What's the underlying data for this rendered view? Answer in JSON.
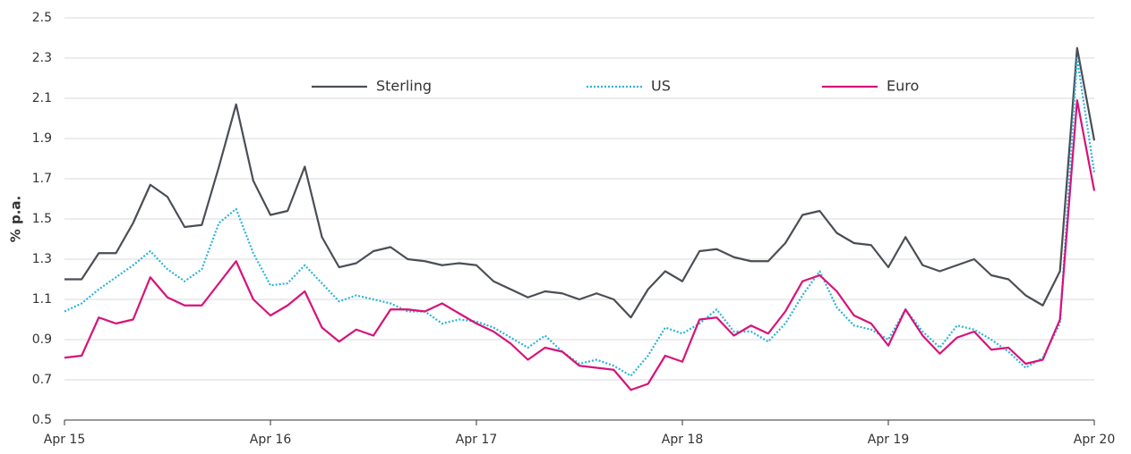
{
  "chart_data": {
    "type": "line",
    "y_label": "% p.a.",
    "categories": [
      "Apr 15",
      null,
      null,
      null,
      null,
      null,
      null,
      null,
      null,
      null,
      null,
      null,
      "Apr 16",
      null,
      null,
      null,
      null,
      null,
      null,
      null,
      null,
      null,
      null,
      null,
      "Apr 17",
      null,
      null,
      null,
      null,
      null,
      null,
      null,
      null,
      null,
      null,
      null,
      "Apr 18",
      null,
      null,
      null,
      null,
      null,
      null,
      null,
      null,
      null,
      null,
      null,
      "Apr 19",
      null,
      null,
      null,
      null,
      null,
      null,
      null,
      null,
      null,
      null,
      null,
      "Apr 20"
    ],
    "series": [
      {
        "name": "Sterling",
        "color": "#4a4f55",
        "dash": "solid",
        "values": [
          1.2,
          1.2,
          1.33,
          1.33,
          1.48,
          1.67,
          1.61,
          1.46,
          1.47,
          1.76,
          2.07,
          1.69,
          1.52,
          1.54,
          1.76,
          1.41,
          1.26,
          1.28,
          1.34,
          1.36,
          1.3,
          1.29,
          1.27,
          1.28,
          1.27,
          1.19,
          1.15,
          1.11,
          1.14,
          1.13,
          1.1,
          1.13,
          1.1,
          1.01,
          1.15,
          1.24,
          1.19,
          1.34,
          1.35,
          1.31,
          1.29,
          1.29,
          1.38,
          1.52,
          1.54,
          1.43,
          1.38,
          1.37,
          1.26,
          1.41,
          1.27,
          1.24,
          1.27,
          1.3,
          1.22,
          1.2,
          1.12,
          1.07,
          1.24,
          2.35,
          1.89
        ]
      },
      {
        "name": "US",
        "color": "#2bb5d8",
        "dash": "dotted",
        "values": [
          1.04,
          1.08,
          1.15,
          1.21,
          1.27,
          1.34,
          1.25,
          1.19,
          1.25,
          1.48,
          1.55,
          1.33,
          1.17,
          1.18,
          1.27,
          1.18,
          1.09,
          1.12,
          1.1,
          1.08,
          1.04,
          1.04,
          0.98,
          1.0,
          0.99,
          0.96,
          0.91,
          0.86,
          0.92,
          0.84,
          0.78,
          0.8,
          0.77,
          0.72,
          0.82,
          0.96,
          0.93,
          0.98,
          1.05,
          0.94,
          0.94,
          0.89,
          0.98,
          1.12,
          1.24,
          1.06,
          0.97,
          0.95,
          0.9,
          1.05,
          0.94,
          0.86,
          0.97,
          0.95,
          0.9,
          0.84,
          0.76,
          0.81,
          0.98,
          2.3,
          1.73
        ]
      },
      {
        "name": "Euro",
        "color": "#d6137a",
        "dash": "solid",
        "values": [
          0.81,
          0.82,
          1.01,
          0.98,
          1.0,
          1.21,
          1.11,
          1.07,
          1.07,
          1.18,
          1.29,
          1.1,
          1.02,
          1.07,
          1.14,
          0.96,
          0.89,
          0.95,
          0.92,
          1.05,
          1.05,
          1.04,
          1.08,
          1.03,
          0.98,
          0.94,
          0.88,
          0.8,
          0.86,
          0.84,
          0.77,
          0.76,
          0.75,
          0.65,
          0.68,
          0.82,
          0.79,
          1.0,
          1.01,
          0.92,
          0.97,
          0.93,
          1.04,
          1.19,
          1.22,
          1.14,
          1.02,
          0.98,
          0.87,
          1.05,
          0.92,
          0.83,
          0.91,
          0.94,
          0.85,
          0.86,
          0.78,
          0.8,
          1.0,
          2.09,
          1.64
        ]
      }
    ],
    "ylim": [
      0.5,
      2.5
    ],
    "yticks": [
      0.5,
      0.7,
      0.9,
      1.1,
      1.3,
      1.5,
      1.7,
      1.9,
      2.1,
      2.3,
      2.5
    ],
    "grid": true,
    "legend": "top"
  }
}
